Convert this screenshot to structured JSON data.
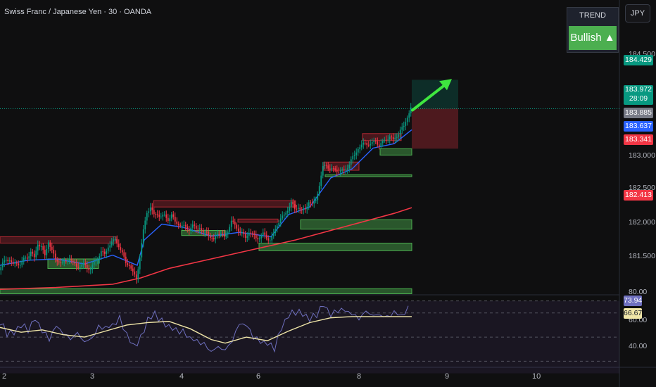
{
  "header": {
    "title": "Swiss Franc / Japanese Yen · 30 · OANDA",
    "currency_button": "JPY"
  },
  "trend_widget": {
    "label": "TREND",
    "value": "Bullish ▲",
    "color": "#4caf50"
  },
  "price_tags": {
    "target": {
      "value": "184.429",
      "color": "#089981"
    },
    "last": {
      "value": "183.972",
      "sub": "28:09",
      "color": "#089981"
    },
    "gray": {
      "value": "183.885",
      "color": "#787b86"
    },
    "blue": {
      "value": "183.637",
      "color": "#2962ff"
    },
    "stop": {
      "value": "183.341",
      "color": "#f23645"
    },
    "ma_red": {
      "value": "182.413",
      "color": "#f23645"
    }
  },
  "rsi_tags": {
    "rsi": {
      "value": "73.94",
      "color": "#6e6fbe"
    },
    "ma": {
      "value": "66.67",
      "color": "#f0e6a8"
    }
  },
  "chart_data": [
    {
      "type": "candlestick",
      "title": "Swiss Franc / Japanese Yen · 30 · OANDA",
      "price_axis": {
        "labels": [
          "184.500",
          "183.000",
          "182.500",
          "182.000",
          "181.500"
        ],
        "ylim": [
          181.1,
          184.8
        ]
      },
      "time_axis": {
        "labels": [
          "2",
          "3",
          "4",
          "6",
          "8",
          "9",
          "10"
        ]
      },
      "close_path": [
        [
          0,
          181.42
        ],
        [
          5,
          181.52
        ],
        [
          10,
          181.6
        ],
        [
          15,
          181.58
        ],
        [
          20,
          181.5
        ],
        [
          25,
          181.55
        ],
        [
          30,
          181.5
        ],
        [
          35,
          181.6
        ],
        [
          40,
          181.63
        ],
        [
          45,
          181.7
        ],
        [
          50,
          181.62
        ],
        [
          55,
          181.85
        ],
        [
          60,
          181.78
        ],
        [
          65,
          181.66
        ],
        [
          70,
          181.88
        ],
        [
          75,
          181.72
        ],
        [
          80,
          181.6
        ],
        [
          85,
          181.56
        ],
        [
          90,
          181.52
        ],
        [
          95,
          181.58
        ],
        [
          100,
          181.6
        ],
        [
          105,
          181.53
        ],
        [
          110,
          181.5
        ],
        [
          115,
          181.47
        ],
        [
          120,
          181.52
        ],
        [
          125,
          181.48
        ],
        [
          130,
          181.42
        ],
        [
          135,
          181.55
        ],
        [
          140,
          181.62
        ],
        [
          145,
          181.7
        ],
        [
          150,
          181.68
        ],
        [
          155,
          181.8
        ],
        [
          160,
          181.85
        ],
        [
          165,
          181.92
        ],
        [
          170,
          181.8
        ],
        [
          175,
          181.68
        ],
        [
          180,
          181.55
        ],
        [
          185,
          181.5
        ],
        [
          190,
          181.38
        ],
        [
          195,
          181.3
        ],
        [
          200,
          181.62
        ],
        [
          205,
          182.05
        ],
        [
          210,
          182.35
        ],
        [
          215,
          182.4
        ],
        [
          220,
          182.3
        ],
        [
          225,
          182.32
        ],
        [
          230,
          182.25
        ],
        [
          235,
          182.3
        ],
        [
          240,
          182.22
        ],
        [
          245,
          182.28
        ],
        [
          250,
          182.2
        ],
        [
          255,
          182.15
        ],
        [
          260,
          182.1
        ],
        [
          265,
          182.13
        ],
        [
          270,
          182.05
        ],
        [
          275,
          182.12
        ],
        [
          280,
          182.1
        ],
        [
          285,
          182.08
        ],
        [
          290,
          182.0
        ],
        [
          295,
          182.05
        ],
        [
          300,
          181.92
        ],
        [
          305,
          181.9
        ],
        [
          310,
          182.02
        ],
        [
          315,
          181.98
        ],
        [
          320,
          181.95
        ],
        [
          325,
          182.05
        ],
        [
          330,
          182.18
        ],
        [
          335,
          182.15
        ],
        [
          340,
          182.05
        ],
        [
          345,
          182.0
        ],
        [
          350,
          181.95
        ],
        [
          355,
          182.02
        ],
        [
          360,
          181.98
        ],
        [
          365,
          181.95
        ],
        [
          370,
          181.92
        ],
        [
          375,
          182.0
        ],
        [
          380,
          181.95
        ],
        [
          385,
          181.88
        ],
        [
          390,
          182.0
        ],
        [
          395,
          182.15
        ],
        [
          400,
          182.22
        ],
        [
          405,
          182.3
        ],
        [
          410,
          182.38
        ],
        [
          415,
          182.48
        ],
        [
          420,
          182.4
        ],
        [
          425,
          182.42
        ],
        [
          430,
          182.35
        ],
        [
          435,
          182.4
        ],
        [
          440,
          182.5
        ],
        [
          445,
          182.45
        ],
        [
          450,
          182.55
        ],
        [
          455,
          182.75
        ],
        [
          460,
          183.05
        ],
        [
          465,
          183.1
        ],
        [
          470,
          183.0
        ],
        [
          475,
          183.02
        ],
        [
          480,
          183.0
        ],
        [
          485,
          182.98
        ],
        [
          490,
          183.0
        ],
        [
          495,
          183.05
        ],
        [
          500,
          183.15
        ],
        [
          505,
          183.25
        ],
        [
          510,
          183.35
        ],
        [
          515,
          183.38
        ],
        [
          520,
          183.45
        ],
        [
          525,
          183.4
        ],
        [
          530,
          183.42
        ],
        [
          535,
          183.48
        ],
        [
          540,
          183.38
        ],
        [
          545,
          183.45
        ],
        [
          550,
          183.5
        ],
        [
          555,
          183.52
        ],
        [
          560,
          183.48
        ],
        [
          565,
          183.55
        ],
        [
          570,
          183.62
        ],
        [
          575,
          183.7
        ],
        [
          580,
          183.85
        ],
        [
          585,
          183.97
        ]
      ],
      "series": [
        {
          "kind": "ema",
          "color": "#2962ff",
          "points": [
            [
              0,
              181.5
            ],
            [
              40,
              181.58
            ],
            [
              80,
              181.6
            ],
            [
              120,
              181.52
            ],
            [
              160,
              181.66
            ],
            [
              195,
              181.5
            ],
            [
              205,
              181.9
            ],
            [
              230,
              182.15
            ],
            [
              260,
              182.1
            ],
            [
              300,
              181.96
            ],
            [
              340,
              182.02
            ],
            [
              385,
              181.95
            ],
            [
              410,
              182.3
            ],
            [
              440,
              182.42
            ],
            [
              470,
              182.88
            ],
            [
              500,
              183.02
            ],
            [
              530,
              183.35
            ],
            [
              560,
              183.42
            ],
            [
              585,
              183.64
            ]
          ]
        },
        {
          "kind": "sma",
          "color": "#f23645",
          "points": [
            [
              0,
              181.12
            ],
            [
              80,
              181.15
            ],
            [
              160,
              181.2
            ],
            [
              200,
              181.3
            ],
            [
              240,
              181.45
            ],
            [
              300,
              181.6
            ],
            [
              360,
              181.75
            ],
            [
              420,
              181.9
            ],
            [
              470,
              182.05
            ],
            [
              520,
              182.2
            ],
            [
              560,
              182.32
            ],
            [
              585,
              182.41
            ]
          ]
        }
      ],
      "zones_demand": [
        {
          "x": [
            0,
            585
          ],
          "y": [
            181.05,
            181.13
          ]
        },
        {
          "x": [
            68,
            140
          ],
          "y": [
            181.45,
            181.6
          ]
        },
        {
          "x": [
            368,
            585
          ],
          "y": [
            181.73,
            181.85
          ]
        },
        {
          "x": [
            427,
            585
          ],
          "y": [
            182.07,
            182.22
          ]
        },
        {
          "x": [
            258,
            320
          ],
          "y": [
            181.97,
            182.05
          ]
        },
        {
          "x": [
            462,
            585
          ],
          "y": [
            182.9,
            182.93
          ]
        },
        {
          "x": [
            540,
            585
          ],
          "y": [
            183.24,
            183.34
          ]
        }
      ],
      "zones_supply": [
        {
          "x": [
            0,
            165
          ],
          "y": [
            181.85,
            181.95
          ]
        },
        {
          "x": [
            218,
            420
          ],
          "y": [
            182.42,
            182.52
          ]
        },
        {
          "x": [
            338,
            395
          ],
          "y": [
            182.18,
            182.23
          ]
        },
        {
          "x": [
            460,
            510
          ],
          "y": [
            183.0,
            183.13
          ]
        },
        {
          "x": [
            515,
            570
          ],
          "y": [
            183.47,
            183.58
          ]
        }
      ],
      "trade": {
        "entry": 183.972,
        "target": 184.429,
        "stop": 183.341
      }
    },
    {
      "type": "line",
      "title": "RSI",
      "axis_labels": [
        "80.00",
        "60.00",
        "40.00"
      ],
      "ylim": [
        25,
        85
      ],
      "series": [
        {
          "kind": "rsi",
          "color": "#6e6fbe",
          "values": [
            [
              0,
              60
            ],
            [
              10,
              52
            ],
            [
              20,
              50
            ],
            [
              30,
              58
            ],
            [
              40,
              55
            ],
            [
              50,
              62
            ],
            [
              60,
              54
            ],
            [
              70,
              48
            ],
            [
              80,
              57
            ],
            [
              90,
              53
            ],
            [
              100,
              49
            ],
            [
              110,
              52
            ],
            [
              120,
              47
            ],
            [
              130,
              50
            ],
            [
              140,
              58
            ],
            [
              150,
              60
            ],
            [
              160,
              62
            ],
            [
              170,
              66
            ],
            [
              180,
              55
            ],
            [
              190,
              45
            ],
            [
              200,
              50
            ],
            [
              210,
              68
            ],
            [
              220,
              72
            ],
            [
              230,
              64
            ],
            [
              240,
              62
            ],
            [
              250,
              58
            ],
            [
              260,
              55
            ],
            [
              270,
              52
            ],
            [
              280,
              48
            ],
            [
              290,
              44
            ],
            [
              300,
              40
            ],
            [
              310,
              42
            ],
            [
              320,
              38
            ],
            [
              330,
              48
            ],
            [
              340,
              60
            ],
            [
              350,
              58
            ],
            [
              360,
              50
            ],
            [
              370,
              44
            ],
            [
              380,
              42
            ],
            [
              390,
              40
            ],
            [
              400,
              55
            ],
            [
              410,
              65
            ],
            [
              420,
              70
            ],
            [
              430,
              66
            ],
            [
              440,
              62
            ],
            [
              450,
              68
            ],
            [
              460,
              74
            ],
            [
              470,
              66
            ],
            [
              480,
              72
            ],
            [
              490,
              70
            ],
            [
              500,
              68
            ],
            [
              510,
              66
            ],
            [
              520,
              70
            ],
            [
              530,
              68
            ],
            [
              540,
              70
            ],
            [
              550,
              66
            ],
            [
              560,
              72
            ],
            [
              570,
              70
            ],
            [
              580,
              74
            ]
          ]
        },
        {
          "kind": "rsi-ma",
          "color": "#f0e6a8",
          "values": [
            [
              0,
              58
            ],
            [
              30,
              54
            ],
            [
              60,
              56
            ],
            [
              90,
              52
            ],
            [
              120,
              50
            ],
            [
              150,
              55
            ],
            [
              180,
              60
            ],
            [
              210,
              62
            ],
            [
              240,
              63
            ],
            [
              270,
              57
            ],
            [
              300,
              48
            ],
            [
              320,
              45
            ],
            [
              350,
              50
            ],
            [
              380,
              47
            ],
            [
              410,
              55
            ],
            [
              440,
              62
            ],
            [
              470,
              66
            ],
            [
              500,
              67
            ],
            [
              530,
              67
            ],
            [
              560,
              67
            ],
            [
              585,
              67
            ]
          ]
        }
      ]
    }
  ]
}
